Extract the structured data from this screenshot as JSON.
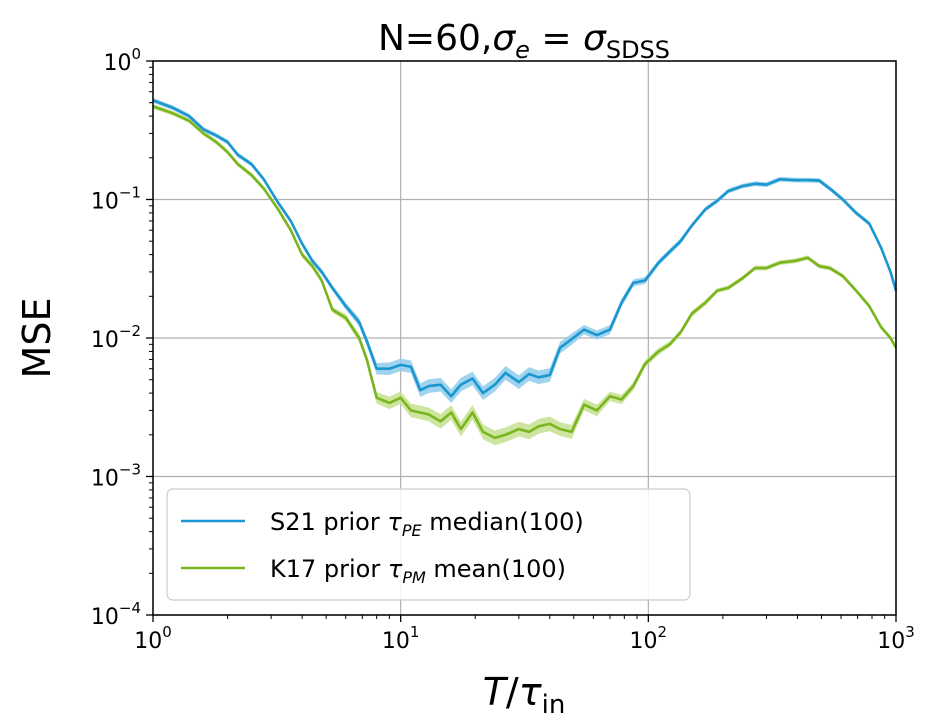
{
  "chart_data": {
    "type": "line",
    "title": {
      "prefix": "N=60,",
      "sigma": "σ",
      "sub_e": "e",
      "eq": " = ",
      "sub_sdss": "SDSS"
    },
    "xlabel": {
      "T": "T",
      "slash": "/",
      "tau": "τ",
      "sub": "in"
    },
    "ylabel": "MSE",
    "xscale": "log",
    "yscale": "log",
    "xlim": [
      1,
      1000
    ],
    "ylim": [
      0.0001,
      1
    ],
    "grid": true,
    "legend_placement": "lower-left",
    "x_ticks": [
      {
        "value": 1,
        "base": "10",
        "exp": "0"
      },
      {
        "value": 10,
        "base": "10",
        "exp": "1"
      },
      {
        "value": 100,
        "base": "10",
        "exp": "2"
      },
      {
        "value": 1000,
        "base": "10",
        "exp": "3"
      }
    ],
    "y_ticks": [
      {
        "value": 1,
        "base": "10",
        "exp": "0"
      },
      {
        "value": 0.1,
        "base": "10",
        "exp": "−1"
      },
      {
        "value": 0.01,
        "base": "10",
        "exp": "−2"
      },
      {
        "value": 0.001,
        "base": "10",
        "exp": "−3"
      },
      {
        "value": 0.0001,
        "base": "10",
        "exp": "−4"
      }
    ],
    "series": [
      {
        "legend": {
          "prefix": "S21 prior ",
          "tau": "τ",
          "sub": "PE",
          "suffix": " median(100)"
        },
        "color": "#1a96d0",
        "band_color": "#8fcbea",
        "x": [
          1.0,
          1.2,
          1.4,
          1.6,
          1.8,
          2.0,
          2.2,
          2.5,
          2.8,
          3.2,
          3.6,
          4.0,
          4.4,
          4.8,
          5.3,
          6.0,
          6.8,
          7.3,
          8.0,
          9.0,
          10.0,
          11.0,
          12.0,
          13.0,
          14.5,
          16.0,
          17.5,
          19.5,
          21.5,
          24.0,
          26.5,
          30.0,
          33.0,
          36.0,
          40.0,
          44.0,
          49.0,
          55.0,
          62.0,
          70.0,
          78.0,
          87.0,
          97.0,
          110.0,
          122.0,
          135.0,
          150.0,
          170.0,
          190.0,
          210.0,
          240.0,
          270.0,
          300.0,
          340.0,
          390.0,
          440.0,
          490.0,
          540.0,
          610.0,
          690.0,
          780.0,
          870.0,
          950.0,
          1000.0
        ],
        "y": [
          0.52,
          0.46,
          0.4,
          0.32,
          0.29,
          0.26,
          0.21,
          0.18,
          0.14,
          0.095,
          0.07,
          0.048,
          0.036,
          0.03,
          0.023,
          0.017,
          0.013,
          0.0095,
          0.006,
          0.006,
          0.0064,
          0.0062,
          0.0042,
          0.0045,
          0.0046,
          0.0038,
          0.0046,
          0.0051,
          0.004,
          0.0046,
          0.0056,
          0.0048,
          0.0055,
          0.0052,
          0.0054,
          0.0085,
          0.0098,
          0.0115,
          0.0105,
          0.0115,
          0.018,
          0.025,
          0.026,
          0.035,
          0.042,
          0.05,
          0.065,
          0.085,
          0.098,
          0.115,
          0.125,
          0.13,
          0.128,
          0.14,
          0.138,
          0.138,
          0.137,
          0.12,
          0.1,
          0.08,
          0.067,
          0.045,
          0.03,
          0.022
        ],
        "band": [
          0.04,
          0.04,
          0.04,
          0.04,
          0.04,
          0.04,
          0.04,
          0.04,
          0.04,
          0.04,
          0.04,
          0.05,
          0.05,
          0.05,
          0.05,
          0.06,
          0.07,
          0.08,
          0.1,
          0.11,
          0.11,
          0.11,
          0.12,
          0.12,
          0.12,
          0.12,
          0.12,
          0.12,
          0.12,
          0.12,
          0.12,
          0.12,
          0.12,
          0.12,
          0.12,
          0.1,
          0.1,
          0.08,
          0.08,
          0.08,
          0.07,
          0.06,
          0.06,
          0.05,
          0.05,
          0.05,
          0.04,
          0.04,
          0.04,
          0.04,
          0.04,
          0.04,
          0.04,
          0.04,
          0.04,
          0.04,
          0.04,
          0.04,
          0.04,
          0.04,
          0.04,
          0.04,
          0.04,
          0.04
        ]
      },
      {
        "legend": {
          "prefix": "K17 prior ",
          "tau": "τ",
          "sub": "PM",
          "suffix": " mean(100)"
        },
        "color": "#7ab51d",
        "band_color": "#c4e08f",
        "x": [
          1.0,
          1.2,
          1.4,
          1.6,
          1.8,
          2.0,
          2.2,
          2.5,
          2.8,
          3.2,
          3.6,
          4.0,
          4.4,
          4.8,
          5.3,
          6.0,
          6.8,
          7.3,
          8.0,
          9.0,
          10.0,
          11.0,
          12.0,
          13.0,
          14.5,
          16.0,
          17.5,
          19.5,
          21.5,
          24.0,
          26.5,
          30.0,
          33.0,
          36.0,
          40.0,
          44.0,
          49.0,
          55.0,
          62.0,
          70.0,
          78.0,
          87.0,
          97.0,
          110.0,
          122.0,
          135.0,
          150.0,
          170.0,
          190.0,
          210.0,
          240.0,
          270.0,
          300.0,
          340.0,
          390.0,
          440.0,
          490.0,
          540.0,
          610.0,
          690.0,
          780.0,
          870.0,
          950.0,
          1000.0
        ],
        "y": [
          0.47,
          0.42,
          0.37,
          0.3,
          0.26,
          0.22,
          0.18,
          0.15,
          0.12,
          0.085,
          0.06,
          0.04,
          0.033,
          0.026,
          0.016,
          0.014,
          0.01,
          0.007,
          0.0037,
          0.0034,
          0.0037,
          0.003,
          0.0029,
          0.0028,
          0.0025,
          0.0029,
          0.0022,
          0.0029,
          0.0021,
          0.0019,
          0.002,
          0.0022,
          0.0021,
          0.0023,
          0.0024,
          0.0022,
          0.0021,
          0.0033,
          0.003,
          0.0038,
          0.0036,
          0.0045,
          0.0065,
          0.008,
          0.009,
          0.011,
          0.015,
          0.018,
          0.022,
          0.023,
          0.027,
          0.032,
          0.032,
          0.035,
          0.036,
          0.038,
          0.033,
          0.032,
          0.028,
          0.022,
          0.017,
          0.012,
          0.01,
          0.0085
        ],
        "band": [
          0.04,
          0.04,
          0.04,
          0.04,
          0.04,
          0.04,
          0.04,
          0.04,
          0.04,
          0.04,
          0.04,
          0.05,
          0.05,
          0.05,
          0.05,
          0.06,
          0.07,
          0.08,
          0.1,
          0.11,
          0.11,
          0.12,
          0.12,
          0.12,
          0.13,
          0.13,
          0.13,
          0.13,
          0.13,
          0.13,
          0.13,
          0.13,
          0.13,
          0.13,
          0.13,
          0.12,
          0.12,
          0.1,
          0.1,
          0.08,
          0.08,
          0.07,
          0.06,
          0.06,
          0.05,
          0.05,
          0.05,
          0.05,
          0.04,
          0.04,
          0.04,
          0.04,
          0.04,
          0.04,
          0.04,
          0.04,
          0.04,
          0.04,
          0.04,
          0.04,
          0.04,
          0.04,
          0.04,
          0.04
        ]
      }
    ]
  }
}
